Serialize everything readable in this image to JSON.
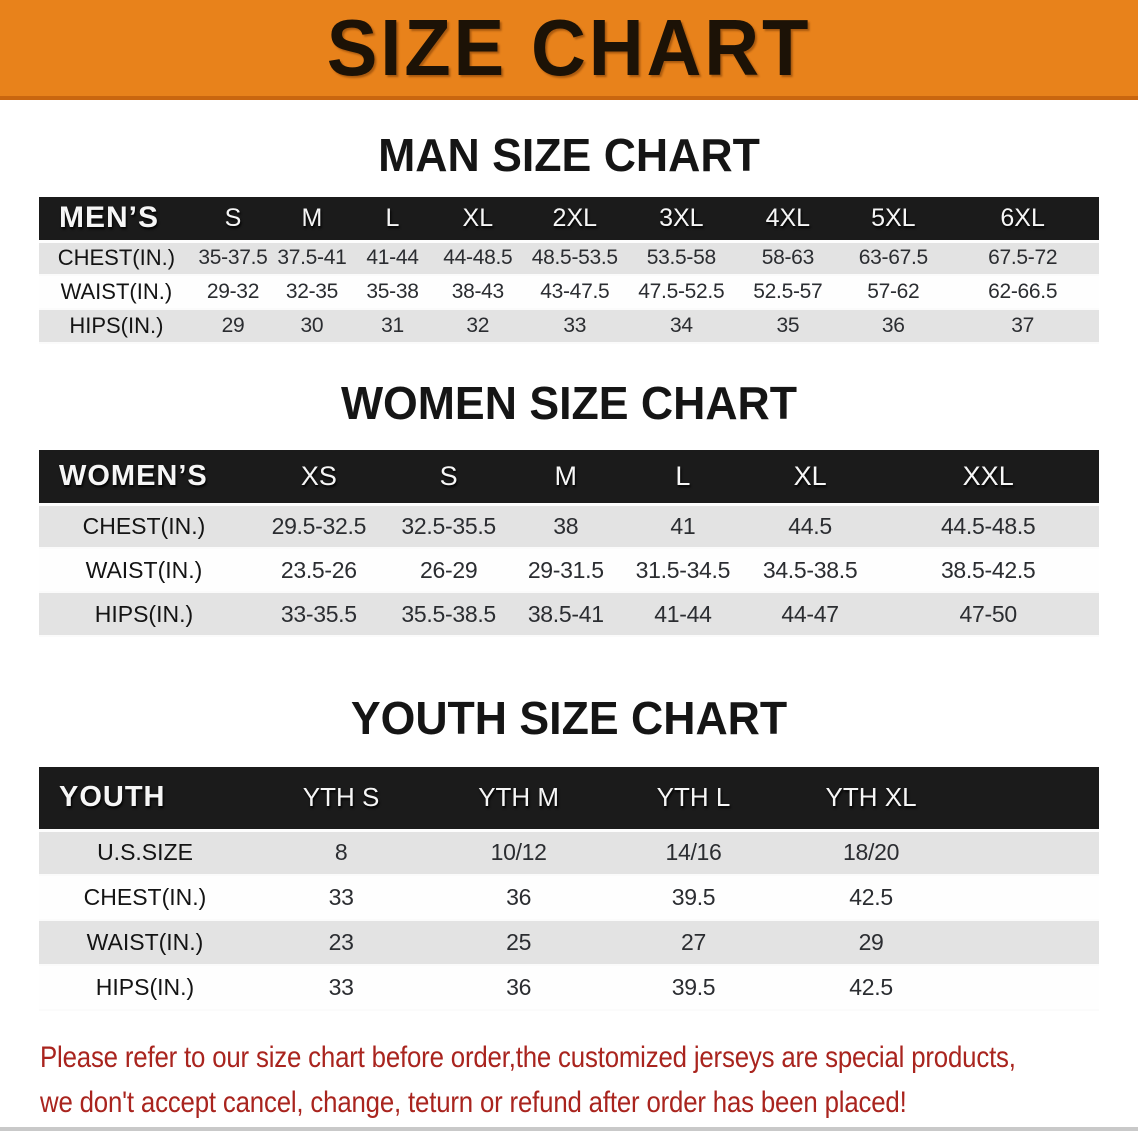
{
  "banner": {
    "title": "SIZE CHART"
  },
  "sections": [
    {
      "heading": "MAN SIZE CHART",
      "table": {
        "label": "MEN’S",
        "columns": [
          "S",
          "M",
          "L",
          "XL",
          "2XL",
          "3XL",
          "4XL",
          "5XL",
          "6XL"
        ],
        "rows": [
          {
            "label": "CHEST(IN.)",
            "values": [
              "35-37.5",
              "37.5-41",
              "41-44",
              "44-48.5",
              "48.5-53.5",
              "53.5-58",
              "58-63",
              "63-67.5",
              "67.5-72"
            ]
          },
          {
            "label": "WAIST(IN.)",
            "values": [
              "29-32",
              "32-35",
              "35-38",
              "38-43",
              "43-47.5",
              "47.5-52.5",
              "52.5-57",
              "57-62",
              "62-66.5"
            ]
          },
          {
            "label": "HIPS(IN.)",
            "values": [
              "29",
              "30",
              "31",
              "32",
              "33",
              "34",
              "35",
              "36",
              "37"
            ]
          }
        ]
      }
    },
    {
      "heading": "WOMEN SIZE CHART",
      "table": {
        "label": "WOMEN’S",
        "columns": [
          "XS",
          "S",
          "M",
          "L",
          "XL",
          "XXL"
        ],
        "rows": [
          {
            "label": "CHEST(IN.)",
            "values": [
              "29.5-32.5",
              "32.5-35.5",
              "38",
              "41",
              "44.5",
              "44.5-48.5"
            ]
          },
          {
            "label": "WAIST(IN.)",
            "values": [
              "23.5-26",
              "26-29",
              "29-31.5",
              "31.5-34.5",
              "34.5-38.5",
              "38.5-42.5"
            ]
          },
          {
            "label": "HIPS(IN.)",
            "values": [
              "33-35.5",
              "35.5-38.5",
              "38.5-41",
              "41-44",
              "44-47",
              "47-50"
            ]
          }
        ]
      }
    },
    {
      "heading": "YOUTH SIZE CHART",
      "table": {
        "label": "YOUTH",
        "columns": [
          "YTH S",
          "YTH M",
          "YTH L",
          "YTH XL"
        ],
        "rows": [
          {
            "label": "U.S.SIZE",
            "values": [
              "8",
              "10/12",
              "14/16",
              "18/20"
            ]
          },
          {
            "label": "CHEST(IN.)",
            "values": [
              "33",
              "36",
              "39.5",
              "42.5"
            ]
          },
          {
            "label": "WAIST(IN.)",
            "values": [
              "23",
              "25",
              "27",
              "29"
            ]
          },
          {
            "label": "HIPS(IN.)",
            "values": [
              "33",
              "36",
              "39.5",
              "42.5"
            ]
          }
        ]
      }
    }
  ],
  "footer": {
    "line1": "Please refer to our size chart before order,the customized jerseys are special products,",
    "line2": "we don't accept cancel, change, teturn or refund after order has been placed!"
  },
  "colors": {
    "banner_orange": "#E8821B",
    "banner_border": "#C9660F",
    "header_black": "#1B1B1B",
    "stripe_gray": "#E3E3E3",
    "warning_red": "#A9241E"
  }
}
